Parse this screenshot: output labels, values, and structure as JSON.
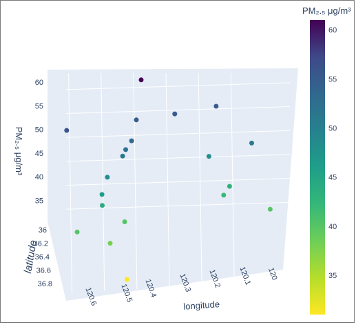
{
  "chart_data": {
    "type": "scatter3d",
    "colorbar": {
      "title": "PM₂.₅ μg/m³",
      "colorscale": "viridis",
      "range": [
        31,
        61
      ],
      "ticks": [
        "60",
        "55",
        "50",
        "45",
        "40",
        "35"
      ]
    },
    "axes": {
      "z": {
        "title": "PM₂.₅ μg/m³",
        "ticks": [
          "60",
          "55",
          "50",
          "45",
          "40",
          "35"
        ]
      },
      "y": {
        "title": "latitude",
        "ticks": [
          "36",
          "36.2",
          "36.4",
          "36.6",
          "36.8"
        ]
      },
      "x": {
        "title": "longitude",
        "ticks": [
          "120.6",
          "120.5",
          "120.4",
          "120.3",
          "120.2",
          "120.1",
          "120"
        ]
      }
    },
    "points": [
      {
        "longitude": 120.38,
        "latitude": 36.05,
        "pm25": 61
      },
      {
        "longitude": 120.62,
        "latitude": 36.35,
        "pm25": 56
      },
      {
        "longitude": 120.4,
        "latitude": 36.2,
        "pm25": 55
      },
      {
        "longitude": 120.28,
        "latitude": 36.15,
        "pm25": 55
      },
      {
        "longitude": 120.15,
        "latitude": 36.08,
        "pm25": 55
      },
      {
        "longitude": 120.42,
        "latitude": 36.35,
        "pm25": 53
      },
      {
        "longitude": 120.44,
        "latitude": 36.4,
        "pm25": 52
      },
      {
        "longitude": 120.45,
        "latitude": 36.42,
        "pm25": 51
      },
      {
        "longitude": 120.05,
        "latitude": 36.35,
        "pm25": 51
      },
      {
        "longitude": 120.18,
        "latitude": 36.3,
        "pm25": 48
      },
      {
        "longitude": 120.5,
        "latitude": 36.5,
        "pm25": 48
      },
      {
        "longitude": 120.52,
        "latitude": 36.6,
        "pm25": 46
      },
      {
        "longitude": 120.52,
        "latitude": 36.62,
        "pm25": 44
      },
      {
        "longitude": 120.12,
        "latitude": 36.4,
        "pm25": 43
      },
      {
        "longitude": 120.14,
        "latitude": 36.45,
        "pm25": 42
      },
      {
        "longitude": 120.6,
        "latitude": 36.7,
        "pm25": 40
      },
      {
        "longitude": 120.45,
        "latitude": 36.6,
        "pm25": 40
      },
      {
        "longitude": 120.0,
        "latitude": 36.55,
        "pm25": 40
      },
      {
        "longitude": 120.5,
        "latitude": 36.75,
        "pm25": 38
      },
      {
        "longitude": 120.45,
        "latitude": 36.8,
        "pm25": 31
      }
    ]
  }
}
